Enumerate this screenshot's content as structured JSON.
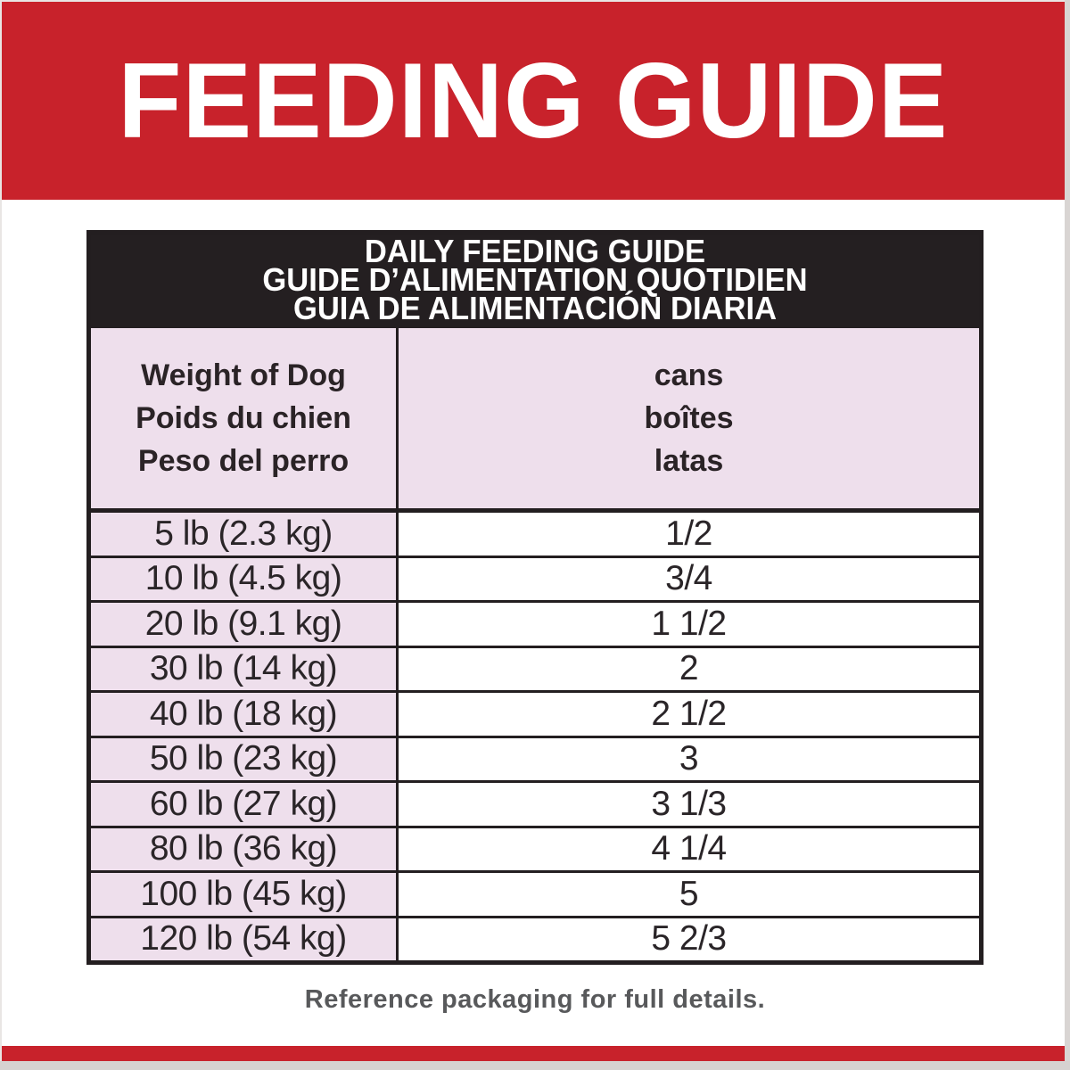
{
  "banner": {
    "title": "FEEDING GUIDE"
  },
  "table": {
    "title_lines": [
      "DAILY FEEDING GUIDE",
      "GUIDE D’ALIMENTATION QUOTIDIEN",
      "GUIA DE ALIMENTACIÓN DIARIA"
    ],
    "weight_header": [
      "Weight of Dog",
      "Poids du chien",
      "Peso del perro"
    ],
    "cans_header": [
      "cans",
      "boîtes",
      "latas"
    ],
    "rows": [
      {
        "weight": "5 lb (2.3 kg)",
        "cans": "1/2"
      },
      {
        "weight": "10 lb (4.5 kg)",
        "cans": "3/4"
      },
      {
        "weight": "20 lb (9.1 kg)",
        "cans": "1 1/2"
      },
      {
        "weight": "30 lb (14 kg)",
        "cans": "2"
      },
      {
        "weight": "40 lb (18 kg)",
        "cans": "2 1/2"
      },
      {
        "weight": "50 lb (23 kg)",
        "cans": "3"
      },
      {
        "weight": "60 lb (27 kg)",
        "cans": "3 1/3"
      },
      {
        "weight": "80 lb (36 kg)",
        "cans": "4 1/4"
      },
      {
        "weight": "100 lb (45 kg)",
        "cans": "5"
      },
      {
        "weight": "120 lb (54 kg)",
        "cans": "5 2/3"
      }
    ]
  },
  "footer": {
    "note": "Reference packaging for full details."
  },
  "colors": {
    "brand_red": "#c8222b",
    "header_black": "#241f21",
    "cell_pink": "#eedfec",
    "footer_gray": "#58595b",
    "edge_gray": "#d6d2d0"
  }
}
